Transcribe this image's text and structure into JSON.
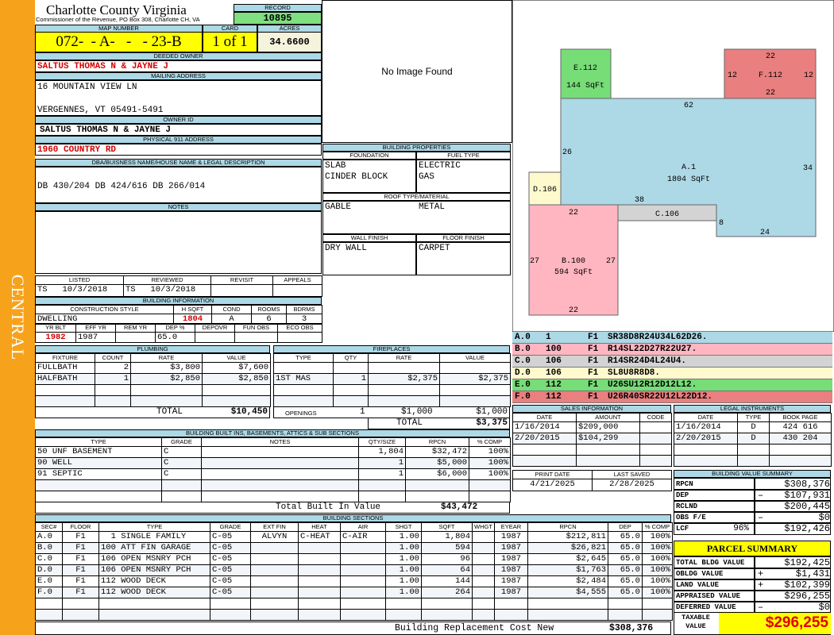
{
  "side_label": "CENTRAL",
  "header": {
    "title": "Charlotte County Virginia",
    "subtitle": "Commissioner of the Revenue, PO Box 308, Charlotte CH, VA",
    "record_label": "RECORD",
    "record": "10895"
  },
  "map": {
    "map_label": "MAP NUMBER",
    "map_number": "072-  - A-   -   - 23-B",
    "card_label": "CARD",
    "card": "1 of 1",
    "acres_label": "ACRES",
    "acres": "34.6600"
  },
  "owner": {
    "deeded_label": "DEEDED OWNER",
    "deeded": "SALTUS THOMAS N & JAYNE J",
    "mailing_label": "MAILING ADDRESS",
    "mail1": "16 MOUNTAIN VIEW LN",
    "mail2": "VERGENNES, VT 05491-5491",
    "id_label": "OWNER ID",
    "owner_id": "SALTUS THOMAS N & JAYNE J",
    "phys_label": "PHYSICAL 911 ADDRESS",
    "phys": "1960 COUNTRY RD"
  },
  "dba": {
    "label": "DBA/BUISNESS NAME/HOUSE NAME & LEGAL DESCRIPTION",
    "value": "DB 430/204 DB 424/616 DB 266/014"
  },
  "notes": {
    "label": "NOTES"
  },
  "image": {
    "text": "No Image Found"
  },
  "listing": {
    "headers": [
      "LISTED",
      "REVIEWED",
      "REVISIT",
      "APPEALS"
    ],
    "rows": [
      [
        "TS   10/3/2018",
        "TS   10/3/2018",
        "",
        ""
      ]
    ]
  },
  "building_info": {
    "title": "BUILDING INFORMATION",
    "headers": [
      "CONSTRUCTION STYLE",
      "H SQFT",
      "COND",
      "ROOMS",
      "BDRMS"
    ],
    "rows": [
      [
        "DWELLING",
        "1804",
        "A",
        "6",
        "3"
      ]
    ],
    "headers2": [
      "YR BLT",
      "EFF YR",
      "REM YR",
      "DEP %",
      "DEPOVR",
      "FUN OBS",
      "ECO OBS"
    ],
    "rows2": [
      [
        "1982",
        "1987",
        "",
        "65.0",
        "",
        "",
        ""
      ]
    ]
  },
  "building_props": {
    "title": "BUILDING PROPERTIES",
    "foundation_label": "FOUNDATION",
    "foundation": [
      "SLAB",
      "CINDER BLOCK"
    ],
    "fuel_label": "FUEL TYPE",
    "fuel": [
      "ELECTRIC",
      "GAS"
    ],
    "roof_label": "ROOF TYPE/MATERIAL",
    "roof_type": "GABLE",
    "roof_material": "METAL",
    "wall_label": "WALL FINISH",
    "wall": "DRY WALL",
    "floor_label": "FLOOR FINISH",
    "floor": "CARPET"
  },
  "plumbing": {
    "title": "PLUMBING",
    "headers": [
      "FIXTURE",
      "COUNT",
      "RATE",
      "VALUE"
    ],
    "rows": [
      [
        "FULLBATH",
        "2",
        "$3,800",
        "$7,600"
      ],
      [
        "HALFBATH",
        "1",
        "$2,850",
        "$2,850"
      ],
      [
        "",
        "",
        "",
        ""
      ],
      [
        "",
        "",
        "",
        ""
      ]
    ],
    "total_label": "TOTAL",
    "total": "$10,450"
  },
  "fireplaces": {
    "title": "FIREPLACES",
    "headers": [
      "TYPE",
      "QTY",
      "RATE",
      "VALUE"
    ],
    "rows": [
      [
        "",
        "",
        "",
        ""
      ],
      [
        "1ST MAS",
        "1",
        "$2,375",
        "$2,375"
      ],
      [
        "",
        "",
        "",
        ""
      ],
      [
        "",
        "",
        "",
        ""
      ]
    ],
    "openings_label": "OPENINGS",
    "openings_qty": "1",
    "openings_rate": "$1,000",
    "openings_value": "$1,000",
    "total_label": "TOTAL",
    "total": "$3,375"
  },
  "built_ins": {
    "title": "BUILDING BUILT INS, BASEMENTS, ATTICS & SUB SECTIONS",
    "headers": [
      "TYPE",
      "GRADE",
      "NOTES",
      "QTY/SIZE",
      "RPCN",
      "% COMP"
    ],
    "rows": [
      [
        "50 UNF BASEMENT",
        "C",
        "",
        "1,804",
        "$32,472",
        "100%"
      ],
      [
        "90 WELL",
        "C",
        "",
        "1",
        "$5,000",
        "100%"
      ],
      [
        "91 SEPTIC",
        "C",
        "",
        "1",
        "$6,000",
        "100%"
      ],
      [
        "",
        "",
        "",
        "",
        "",
        ""
      ],
      [
        "",
        "",
        "",
        "",
        "",
        ""
      ]
    ],
    "total_label": "Total Built In Value",
    "total": "$43,472"
  },
  "sections": {
    "title": "BUILDING SECTIONS",
    "headers": [
      "SEC#",
      "FLOOR",
      "TYPE",
      "GRADE",
      "EXT FIN",
      "HEAT",
      "AIR",
      "SHGT",
      "SQFT",
      "WHGT",
      "EYEAR",
      "RPCN",
      "DEP",
      "% COMP"
    ],
    "rows": [
      [
        "A.0",
        "F1",
        "  1 SINGLE FAMILY",
        "C-05",
        "ALVYN",
        "C-HEAT",
        "C-AIR",
        "1.00",
        "1,804",
        "",
        "1987",
        "$212,811",
        "65.0",
        "100%"
      ],
      [
        "B.0",
        "F1",
        "100 ATT FIN GARAGE",
        "C-05",
        "",
        "",
        "",
        "1.00",
        "594",
        "",
        "1987",
        "$26,821",
        "65.0",
        "100%"
      ],
      [
        "C.0",
        "F1",
        "106 OPEN MSNRY PCH",
        "C-05",
        "",
        "",
        "",
        "1.00",
        "96",
        "",
        "1987",
        "$2,645",
        "65.0",
        "100%"
      ],
      [
        "D.0",
        "F1",
        "106 OPEN MSNRY PCH",
        "C-05",
        "",
        "",
        "",
        "1.00",
        "64",
        "",
        "1987",
        "$1,763",
        "65.0",
        "100%"
      ],
      [
        "E.0",
        "F1",
        "112 WOOD DECK",
        "C-05",
        "",
        "",
        "",
        "1.00",
        "144",
        "",
        "1987",
        "$2,484",
        "65.0",
        "100%"
      ],
      [
        "F.0",
        "F1",
        "112 WOOD DECK",
        "C-05",
        "",
        "",
        "",
        "1.00",
        "264",
        "",
        "1987",
        "$4,555",
        "65.0",
        "100%"
      ],
      [
        "",
        "",
        "",
        "",
        "",
        "",
        "",
        "",
        "",
        "",
        "",
        "",
        "",
        ""
      ],
      [
        "",
        "",
        "",
        "",
        "",
        "",
        "",
        "",
        "",
        "",
        "",
        "",
        "",
        ""
      ]
    ],
    "total_label": "Building Replacement Cost New",
    "total": "$308,376"
  },
  "sketch": {
    "labels": {
      "e": "E.112",
      "e_area": "144 SqFt",
      "f": "F.112",
      "f_top": "22",
      "f_left": "12",
      "f_right": "12",
      "f_bottom": "22",
      "a": "A.1",
      "a_area": "1804 SqFt",
      "a_top": "62",
      "a_left": "26",
      "a_right": "34",
      "a_38": "38",
      "a_8": "8",
      "a_24": "24",
      "d": "D.106",
      "c": "C.106",
      "b": "B.100",
      "b_area": "594 SqFt",
      "b_top": "22",
      "b_left": "27",
      "b_right": "27",
      "b_bottom": "22"
    },
    "colors": {
      "a": "#add8e6",
      "b": "#ffb6c1",
      "c": "#d3d3d3",
      "d": "#fffacd",
      "e": "#77dd77",
      "f": "#e97f7f"
    }
  },
  "sketch_codes": [
    {
      "code": "A.0",
      "n": "1",
      "fl": "F1",
      "vec": "SR38D8R24U34L62D26.",
      "color": "#add8e6"
    },
    {
      "code": "B.0",
      "n": "100",
      "fl": "F1",
      "vec": "R14SL22D27R22U27.",
      "color": "#ffb6c1"
    },
    {
      "code": "C.0",
      "n": "106",
      "fl": "F1",
      "vec": "R14SR24D4L24U4.",
      "color": "#d3d3d3"
    },
    {
      "code": "D.0",
      "n": "106",
      "fl": "F1",
      "vec": "SL8U8R8D8.",
      "color": "#fffacd"
    },
    {
      "code": "E.0",
      "n": "112",
      "fl": "F1",
      "vec": "U26SU12R12D12L12.",
      "color": "#77dd77"
    },
    {
      "code": "F.0",
      "n": "112",
      "fl": "F1",
      "vec": "U26R40SR22U12L22D12.",
      "color": "#e97f7f"
    }
  ],
  "sales": {
    "title": "SALES INFORMATION",
    "headers": [
      "DATE",
      "AMOUNT",
      "CODE"
    ],
    "rows": [
      [
        "1/16/2014",
        "$209,000",
        ""
      ],
      [
        "2/20/2015",
        "$104,299",
        ""
      ],
      [
        "",
        "",
        ""
      ],
      [
        "",
        "",
        ""
      ]
    ]
  },
  "legal": {
    "title": "LEGAL INSTRUMENTS",
    "headers": [
      "DATE",
      "TYPE",
      "BOOK PAGE"
    ],
    "rows": [
      [
        "1/16/2014",
        "D",
        "424 616"
      ],
      [
        "2/20/2015",
        "D",
        "430 204"
      ],
      [
        "",
        "",
        ""
      ],
      [
        "",
        "",
        ""
      ]
    ]
  },
  "dates": {
    "headers": [
      "PRINT DATE",
      "LAST SAVED"
    ],
    "rows": [
      [
        "4/21/2025",
        "2/28/2025"
      ]
    ]
  },
  "value_summary": {
    "title": "BUILDING VALUE SUMMARY",
    "rows": [
      {
        "label": "RPCN",
        "pct": "",
        "op": "",
        "value": "$308,376"
      },
      {
        "label": "DEP",
        "pct": "",
        "op": "–",
        "value": "$107,931"
      },
      {
        "label": "RCLND",
        "pct": "",
        "op": "",
        "value": "$200,445"
      },
      {
        "label": "OBS F/E",
        "pct": "",
        "op": "–",
        "value": "$0"
      },
      {
        "label": "LCF",
        "pct": "96%",
        "op": "",
        "value": "$192,426"
      }
    ]
  },
  "parcel_summary": {
    "title": "PARCEL SUMMARY",
    "rows": [
      {
        "label": "TOTAL BLDG VALUE",
        "op": "",
        "value": "$192,425"
      },
      {
        "label": "OBLDG VALUE",
        "op": "+",
        "value": "$1,431"
      },
      {
        "label": "LAND VALUE",
        "op": "+",
        "value": "$102,399"
      },
      {
        "label": "APPRAISED VALUE",
        "op": "",
        "value": "$296,255"
      },
      {
        "label": "DEFERRED VALUE",
        "op": "–",
        "value": "$0"
      }
    ],
    "taxable_label": "TAXABLE VALUE",
    "taxable": "$296,255"
  }
}
